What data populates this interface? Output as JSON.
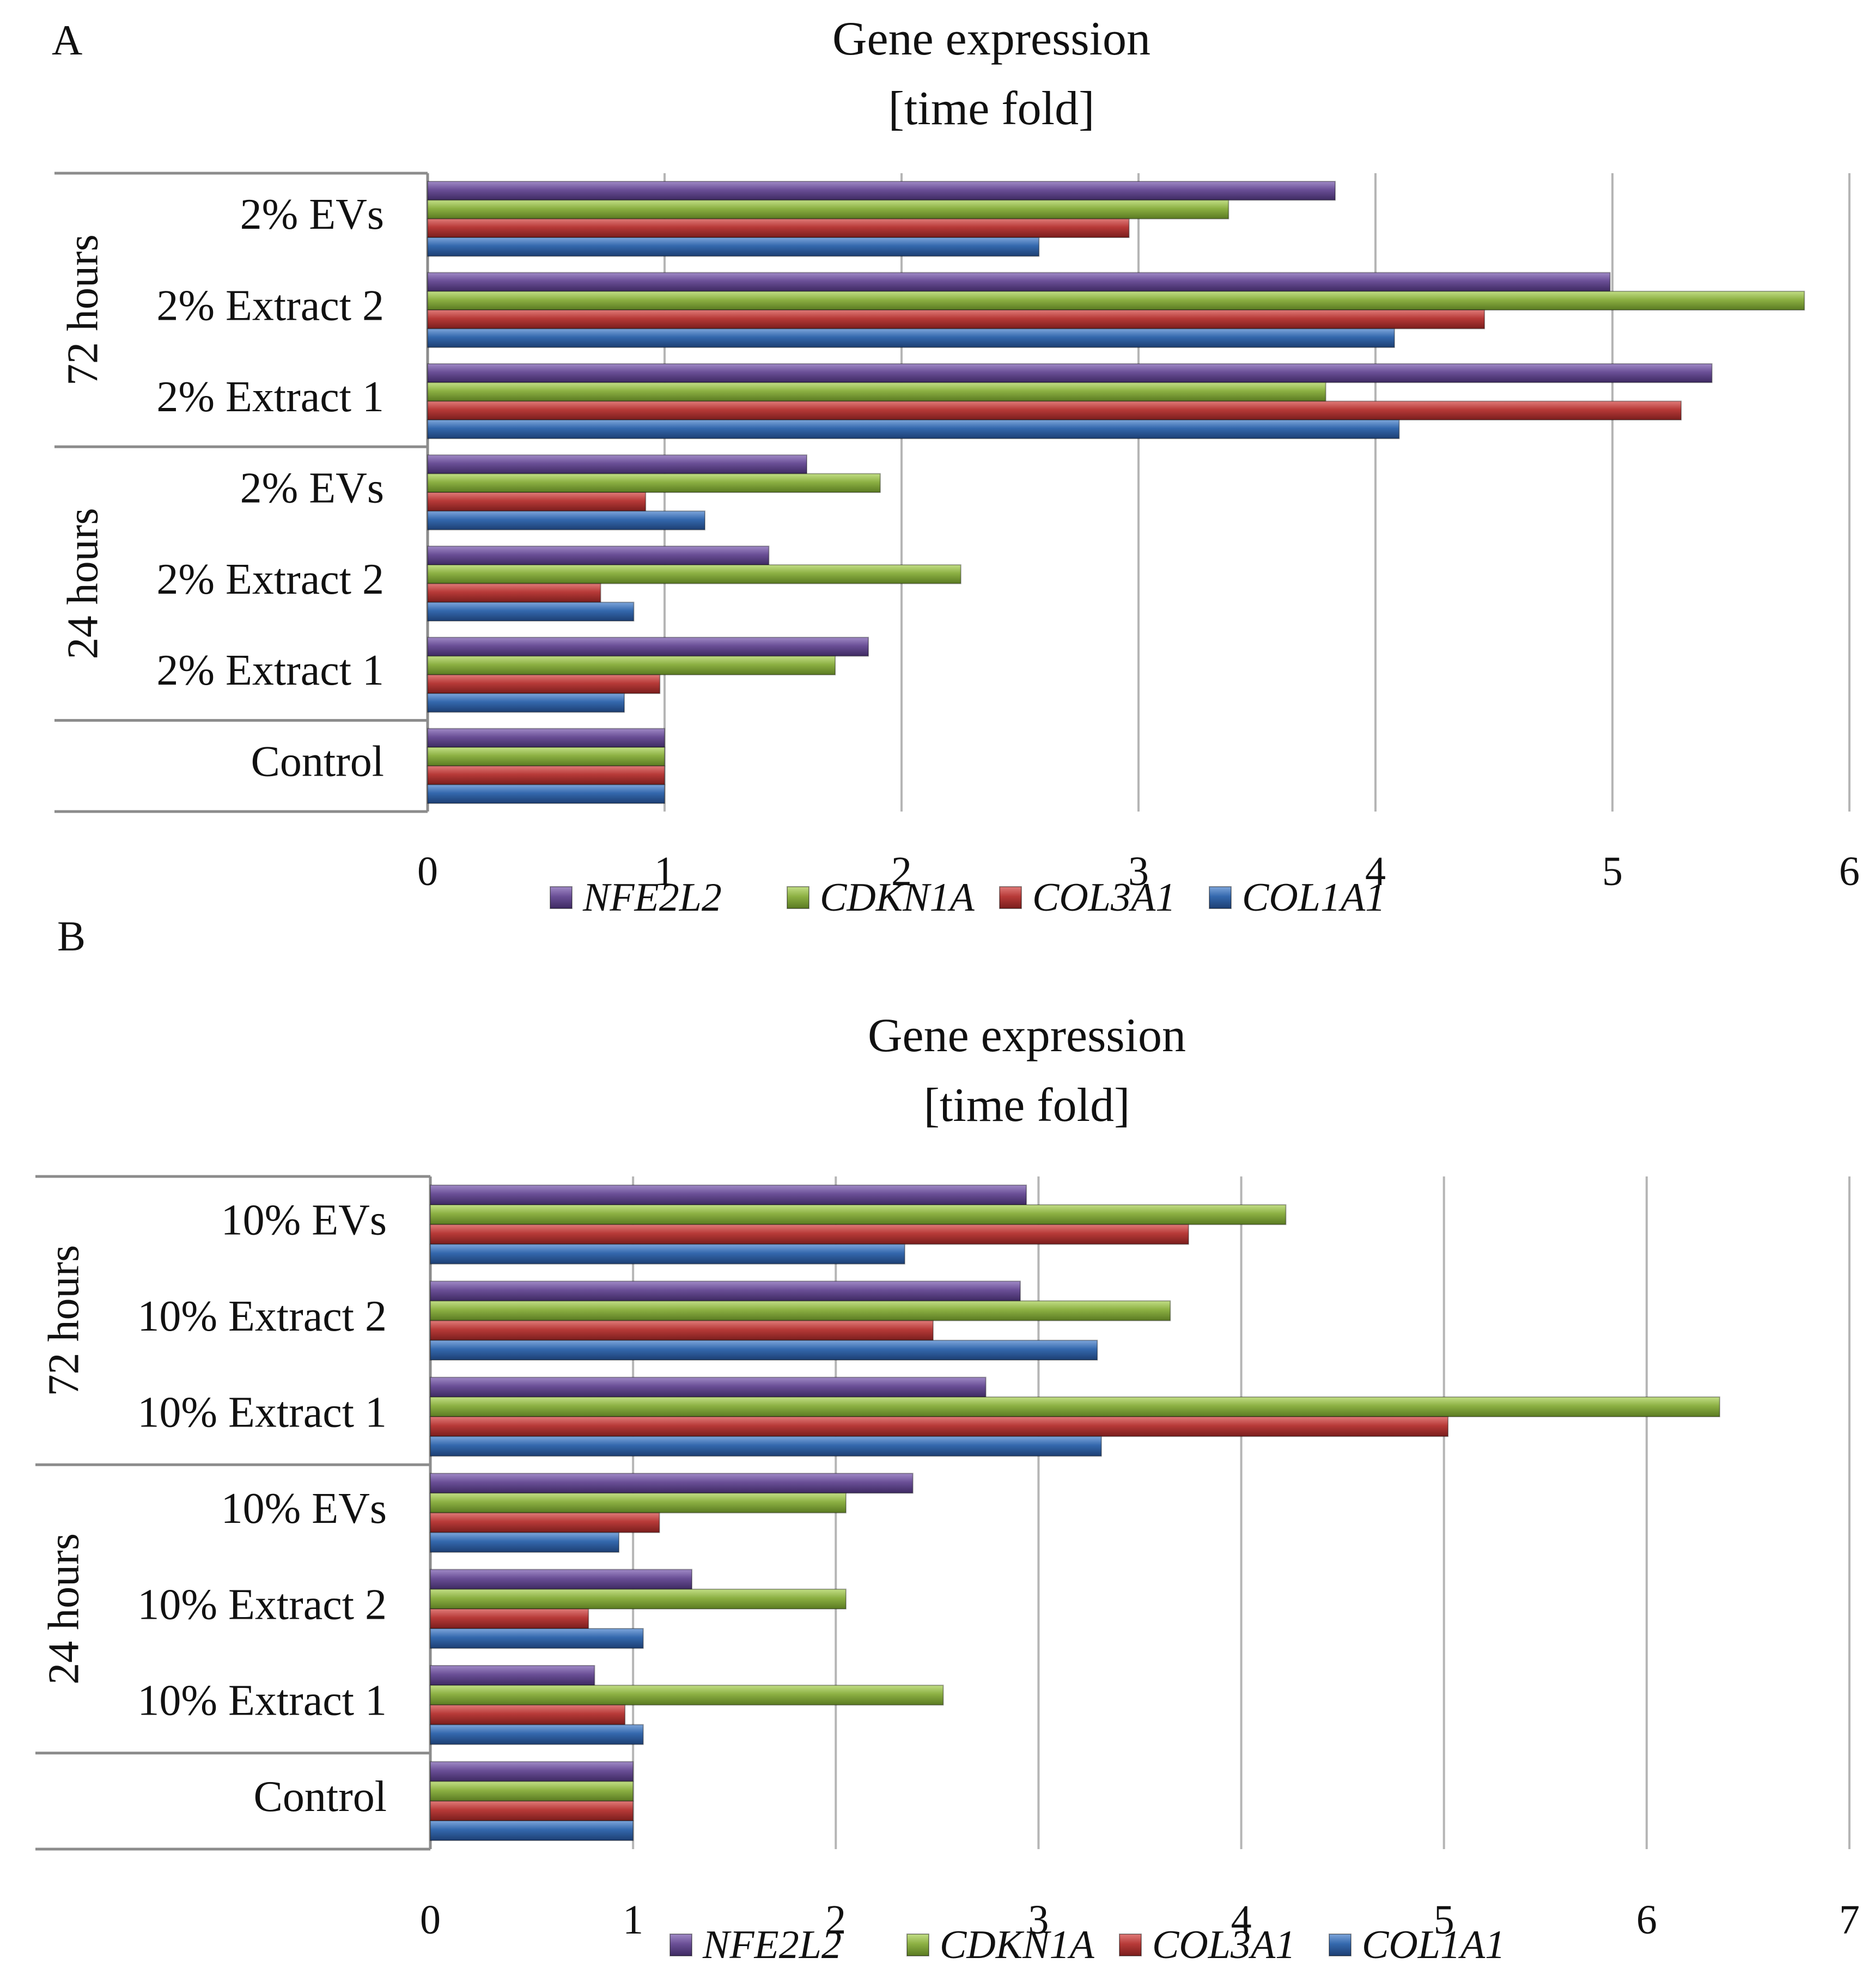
{
  "chart_data": [
    {
      "panel": "A",
      "type": "bar",
      "orientation": "horizontal",
      "title": "Gene expression",
      "subtitle": "[time fold]",
      "xlim": [
        0,
        6
      ],
      "ticks": [
        "0",
        "1",
        "2",
        "3",
        "4",
        "5",
        "6"
      ],
      "grid": true,
      "legend_position": "bottom",
      "groups": [
        {
          "label": "72 hours",
          "categories": [
            "2% EVs",
            "2% Extract 2",
            "2% Extract 1"
          ]
        },
        {
          "label": "24 hours",
          "categories": [
            "2% EVs",
            "2% Extract 2",
            "2% Extract 1"
          ]
        },
        {
          "label": "",
          "categories": [
            "Control"
          ]
        }
      ],
      "series": [
        {
          "name": "NFE2L2",
          "color": "#6a4f96",
          "values": [
            3.83,
            4.99,
            5.42,
            1.6,
            1.44,
            1.86,
            1.0
          ]
        },
        {
          "name": "CDKN1A",
          "color": "#8cb043",
          "values": [
            3.38,
            5.81,
            3.79,
            1.91,
            2.25,
            1.72,
            1.0
          ]
        },
        {
          "name": "COL3A1",
          "color": "#b73a38",
          "values": [
            2.96,
            4.46,
            5.29,
            0.92,
            0.73,
            0.98,
            1.0
          ]
        },
        {
          "name": "COL1A1",
          "color": "#3468ad",
          "values": [
            2.58,
            4.08,
            4.1,
            1.17,
            0.87,
            0.83,
            1.0
          ]
        }
      ]
    },
    {
      "panel": "B",
      "type": "bar",
      "orientation": "horizontal",
      "title": "Gene expression",
      "subtitle": "[time fold]",
      "xlim": [
        0,
        7
      ],
      "ticks": [
        "0",
        "1",
        "2",
        "3",
        "4",
        "5",
        "6",
        "7"
      ],
      "grid": true,
      "legend_position": "bottom",
      "groups": [
        {
          "label": "72 hours",
          "categories": [
            "10% EVs",
            "10% Extract 2",
            "10% Extract 1"
          ]
        },
        {
          "label": "24 hours",
          "categories": [
            "10% EVs",
            "10% Extract 2",
            "10% Extract 1"
          ]
        },
        {
          "label": "",
          "categories": [
            "Control"
          ]
        }
      ],
      "series": [
        {
          "name": "NFE2L2",
          "color": "#6a4f96",
          "values": [
            2.94,
            2.91,
            2.74,
            2.38,
            1.29,
            0.81,
            1.0
          ]
        },
        {
          "name": "CDKN1A",
          "color": "#8cb043",
          "values": [
            4.22,
            3.65,
            6.36,
            2.05,
            2.05,
            2.53,
            1.0
          ]
        },
        {
          "name": "COL3A1",
          "color": "#b73a38",
          "values": [
            3.74,
            2.48,
            5.02,
            1.13,
            0.78,
            0.96,
            1.0
          ]
        },
        {
          "name": "COL1A1",
          "color": "#3468ad",
          "values": [
            2.34,
            3.29,
            3.31,
            0.93,
            1.05,
            1.05,
            1.0
          ]
        }
      ]
    }
  ]
}
